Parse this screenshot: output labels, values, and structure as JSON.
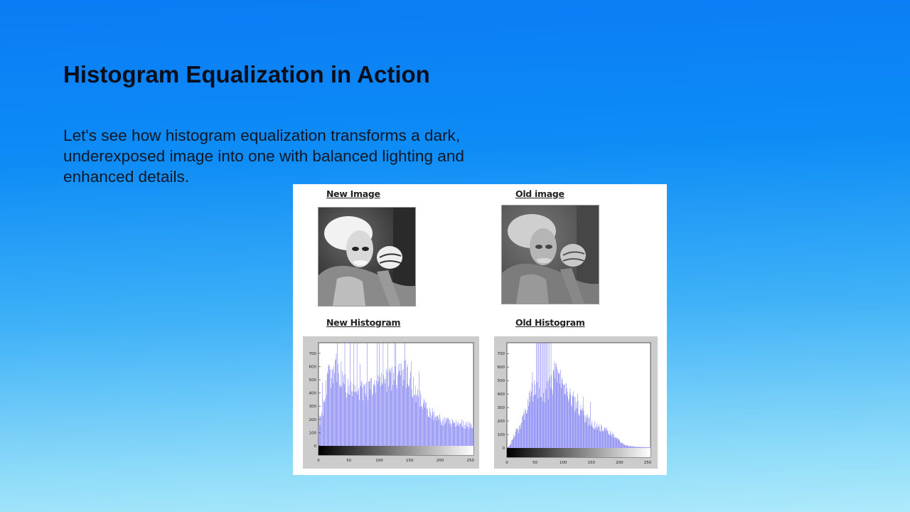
{
  "slide": {
    "title": "Histogram Equalization in Action",
    "body": "Let's see how histogram equalization transforms a dark, underexposed image into one with balanced lighting and enhanced details."
  },
  "figure": {
    "new_image_label": "New Image",
    "old_image_label": "Old image",
    "new_histogram_label": "New Histogram",
    "old_histogram_label": "Old Histogram"
  },
  "colors": {
    "bar": "#6f6ff0",
    "panel": "#cccccc"
  },
  "chart_data": [
    {
      "type": "bar",
      "title": "",
      "xlim": [
        0,
        255
      ],
      "ylim": [
        0,
        780
      ],
      "x_ticks": [
        0,
        50,
        100,
        150,
        200,
        250
      ],
      "y_ticks": [
        0,
        100,
        200,
        300,
        400,
        500,
        600,
        700
      ],
      "x_tick_labels": [
        "0",
        "50",
        "100",
        "150",
        "200",
        "250"
      ],
      "y_tick_labels": [
        "0",
        "100",
        "200",
        "300",
        "400",
        "500",
        "600",
        "700"
      ],
      "grid": false,
      "shape": {
        "anchors_x": [
          0,
          5,
          10,
          15,
          20,
          25,
          30,
          35,
          40,
          45,
          50,
          55,
          60,
          65,
          70,
          75,
          80,
          90,
          100,
          110,
          120,
          130,
          140,
          150,
          155,
          160,
          170,
          180,
          190,
          200,
          210,
          220,
          230,
          240,
          250,
          255
        ],
        "anchors_y": [
          200,
          230,
          420,
          540,
          600,
          620,
          650,
          560,
          520,
          500,
          480,
          450,
          470,
          460,
          480,
          430,
          460,
          500,
          520,
          560,
          560,
          560,
          620,
          560,
          500,
          440,
          380,
          300,
          260,
          220,
          200,
          200,
          200,
          180,
          170,
          160
        ],
        "spike_x": [
          6,
          14,
          25,
          31,
          37,
          43,
          52,
          58,
          63,
          68,
          80,
          96,
          100,
          106,
          114,
          125,
          127,
          142,
          152,
          165
        ],
        "spike_y": [
          480,
          560,
          600,
          780,
          640,
          780,
          780,
          780,
          780,
          620,
          780,
          780,
          780,
          780,
          780,
          780,
          780,
          780,
          640,
          560
        ]
      }
    },
    {
      "type": "bar",
      "title": "",
      "xlim": [
        0,
        255
      ],
      "ylim": [
        0,
        780
      ],
      "x_ticks": [
        0,
        50,
        100,
        150,
        200,
        250
      ],
      "y_ticks": [
        0,
        100,
        200,
        300,
        400,
        500,
        600,
        700
      ],
      "x_tick_labels": [
        "0",
        "50",
        "100",
        "150",
        "200",
        "250"
      ],
      "y_tick_labels": [
        "0",
        "100",
        "200",
        "300",
        "400",
        "500",
        "600",
        "700"
      ],
      "grid": false,
      "shape": {
        "anchors_x": [
          0,
          5,
          10,
          15,
          20,
          25,
          30,
          35,
          40,
          45,
          50,
          55,
          60,
          65,
          70,
          75,
          80,
          85,
          90,
          95,
          100,
          110,
          120,
          130,
          140,
          150,
          160,
          170,
          180,
          190,
          200,
          210,
          230,
          255
        ],
        "anchors_y": [
          0,
          20,
          80,
          120,
          150,
          200,
          260,
          330,
          400,
          460,
          500,
          440,
          430,
          450,
          460,
          480,
          520,
          580,
          620,
          600,
          480,
          400,
          360,
          300,
          240,
          200,
          180,
          160,
          140,
          100,
          60,
          20,
          10,
          5
        ],
        "spike_x": [
          30,
          40,
          45,
          52,
          54,
          56,
          58,
          60,
          62,
          64,
          66,
          68,
          70,
          72,
          75,
          78,
          84,
          88,
          92,
          98,
          105,
          112,
          118,
          125,
          135,
          148
        ],
        "spike_y": [
          250,
          340,
          560,
          780,
          780,
          780,
          780,
          780,
          780,
          780,
          780,
          780,
          780,
          780,
          780,
          780,
          640,
          600,
          560,
          520,
          480,
          440,
          420,
          400,
          380,
          340
        ]
      }
    }
  ]
}
